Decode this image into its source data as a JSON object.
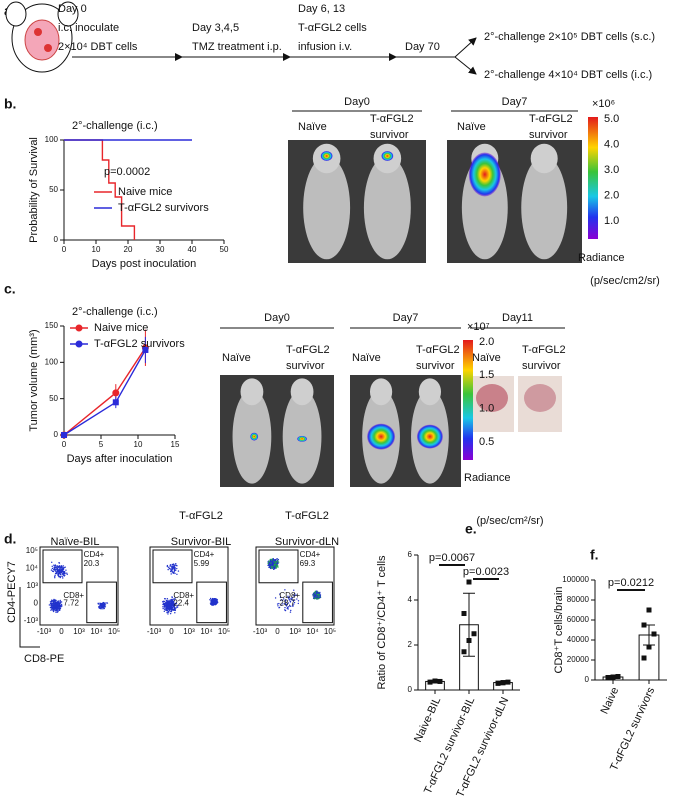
{
  "timeline": {
    "label": "a.",
    "steps": [
      {
        "lines": [
          "Day 0",
          "i.c. inoculate",
          "2×10⁴ DBT cells"
        ]
      },
      {
        "lines": [
          "Day 3,4,5",
          "TMZ treatment i.p."
        ]
      },
      {
        "lines": [
          "Day 6, 13",
          "T-αFGL2 cells",
          "infusion i.v."
        ]
      },
      {
        "lines": [
          "Day 70"
        ]
      }
    ],
    "branches": [
      "2°-challenge 2×10⁵ DBT cells (s.c.)",
      "2°-challenge 4×10⁴ DBT cells (i.c.)"
    ]
  },
  "imaging": [
    {
      "groups": [
        {
          "day": "Day0",
          "mice": [
            {
              "lines": [
                "Naïve"
              ]
            },
            {
              "lines": [
                "T-αFGL2",
                "survivor"
              ]
            }
          ]
        },
        {
          "day": "Day7",
          "mice": [
            {
              "lines": [
                "Naïve"
              ]
            },
            {
              "lines": [
                "T-αFGL2",
                "survivor"
              ]
            }
          ]
        }
      ],
      "colorbar": {
        "multiplier": "×10⁶",
        "ticks": [
          "5.0",
          "4.0",
          "3.0",
          "2.0",
          "1.0"
        ],
        "title": "Radiance",
        "unit": "(p/sec/cm2/sr)"
      }
    },
    {
      "groups": [
        {
          "day": "Day0",
          "mice": [
            {
              "lines": [
                "Naïve"
              ]
            },
            {
              "lines": [
                "T-αFGL2",
                "survivor"
              ]
            }
          ]
        },
        {
          "day": "Day7",
          "mice": [
            {
              "lines": [
                "Naïve"
              ]
            },
            {
              "lines": [
                "T-αFGL2",
                "survivor"
              ]
            }
          ]
        },
        {
          "day": "Day11",
          "mice": [
            {
              "lines": [
                "Naïve"
              ]
            },
            {
              "lines": [
                "T-αFGL2",
                "survivor"
              ]
            }
          ]
        }
      ],
      "colorbar": {
        "multiplier": "×10⁷",
        "ticks": [
          "2.0",
          "1.5",
          "1.0",
          "0.5"
        ],
        "title": "Radiance",
        "unit": "(p/sec/cm²/sr)"
      }
    }
  ],
  "flow": {
    "label": "d.",
    "y_label": "CD4-PECY7",
    "x_label": "CD8-PE",
    "y_ticks": [
      "10⁵",
      "10⁴",
      "10³",
      "0",
      "-10³"
    ],
    "x_ticks": [
      "-10³",
      "0",
      "10³",
      "10⁴",
      "10⁵"
    ],
    "plots": [
      {
        "title": [
          "Naïve-BIL"
        ],
        "gates": [
          {
            "name": "CD4+",
            "value": 20.3
          },
          {
            "name": "CD8+",
            "value": 7.72
          }
        ]
      },
      {
        "title": [
          "T-αFGL2",
          "Survivor-BIL"
        ],
        "gates": [
          {
            "name": "CD4+",
            "value": 5.99
          },
          {
            "name": "CD8+",
            "value": 22.4
          }
        ]
      },
      {
        "title": [
          "T-αFGL2",
          "Survivor-dLN"
        ],
        "gates": [
          {
            "name": "CD4+",
            "value": 69.3
          },
          {
            "name": "CD8+",
            "value": 28.7
          }
        ]
      }
    ]
  },
  "chart_data": [
    {
      "type": "line",
      "label": "b.",
      "title": "2°-challenge (i.c.)",
      "x_label": "Days post inoculation",
      "y_label": "Probability of Survival",
      "annotations": [
        "p=0.0002"
      ],
      "xlim": [
        0,
        50
      ],
      "xticks": [
        0,
        10,
        20,
        30,
        40,
        50
      ],
      "ylim": [
        0,
        100
      ],
      "yticks": [
        0,
        50,
        100
      ],
      "series": [
        {
          "name": "Naive mice",
          "color": "#e8262b",
          "x": [
            0,
            12,
            12,
            14,
            14,
            16,
            16,
            18,
            18,
            22,
            22
          ],
          "values": [
            100,
            100,
            80,
            80,
            57,
            57,
            43,
            43,
            14,
            14,
            0
          ]
        },
        {
          "name": "T-αFGL2 survivors",
          "color": "#2b2bd9",
          "x": [
            0,
            40
          ],
          "values": [
            100,
            100
          ]
        }
      ]
    },
    {
      "type": "line",
      "label": "c.",
      "title": "2°-challenge (i.c.)",
      "x_label": "Days after inoculation",
      "y_label": "Tumor volume (mm³)",
      "markers": true,
      "xlim": [
        0,
        15
      ],
      "xticks": [
        0,
        5,
        10,
        15
      ],
      "ylim": [
        0,
        150
      ],
      "yticks": [
        0,
        50,
        100,
        150
      ],
      "series": [
        {
          "name": "Naive mice",
          "color": "#e8262b",
          "x": [
            0,
            7,
            11
          ],
          "values": [
            0,
            58,
            120
          ],
          "errors": [
            0,
            12,
            25
          ]
        },
        {
          "name": "T-αFGL2 survivors",
          "color": "#2b2bd9",
          "x": [
            0,
            7,
            11
          ],
          "values": [
            0,
            45,
            117
          ],
          "errors": [
            0,
            8,
            18
          ]
        }
      ]
    },
    {
      "type": "bar",
      "label": "e.",
      "y_label": "Ratio of CD8⁺/CD4⁺ T cells",
      "annotations": [
        "p=0.0067",
        "p=0.0023"
      ],
      "categories": [
        "Naive-BIL",
        "T-αFGL2 survivor-BIL",
        "T-αFGL2 survivor-dLN"
      ],
      "values": [
        0.38,
        2.9,
        0.33
      ],
      "errors": [
        0.05,
        1.4,
        0.03
      ],
      "points": [
        [
          0.35,
          0.4,
          0.38
        ],
        [
          1.7,
          2.2,
          2.5,
          3.4,
          4.8
        ],
        [
          0.3,
          0.33,
          0.35,
          0.3,
          0.32
        ]
      ],
      "ylim": [
        0,
        6
      ],
      "yticks": [
        0,
        2,
        4,
        6
      ]
    },
    {
      "type": "bar",
      "label": "f.",
      "y_label": "CD8⁺T cells/brain",
      "annotations": [
        "p=0.0212"
      ],
      "categories": [
        "Naive",
        "T-αFGL2 survivors"
      ],
      "values": [
        3000,
        45000
      ],
      "errors": [
        1000,
        10000
      ],
      "points": [
        [
          2500,
          3000,
          3500
        ],
        [
          22000,
          33000,
          46000,
          55000,
          70000
        ]
      ],
      "ylim": [
        0,
        100000
      ],
      "yticks": [
        0,
        20000,
        40000,
        60000,
        80000,
        100000
      ]
    }
  ]
}
